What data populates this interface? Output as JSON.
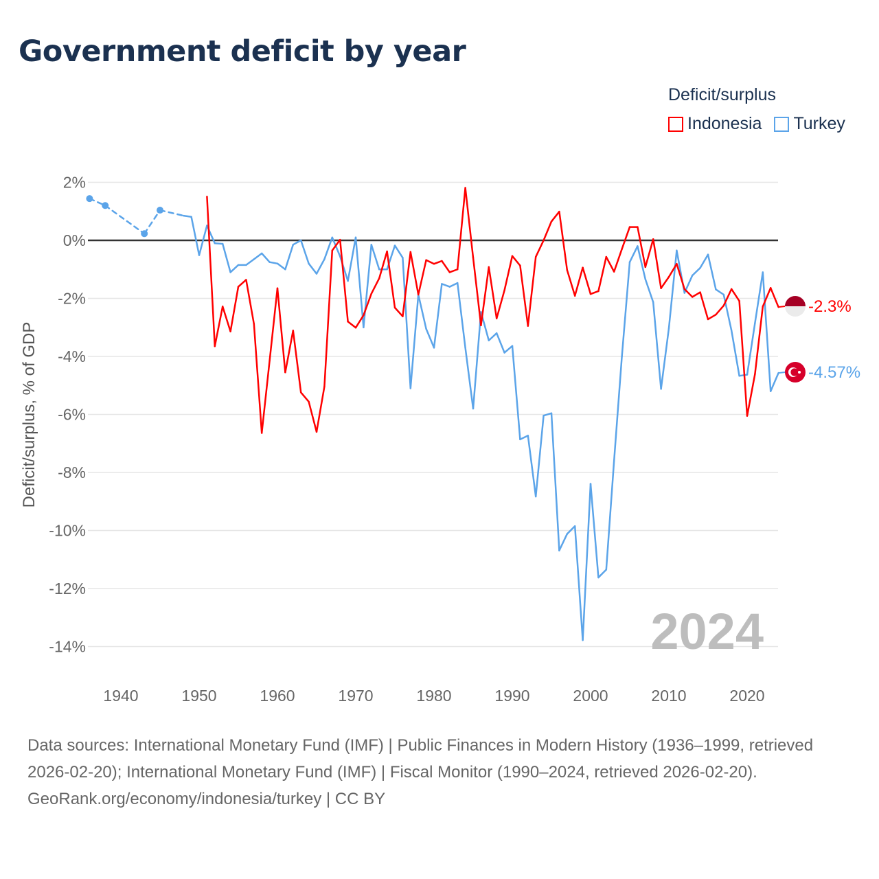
{
  "title": "Government deficit by year",
  "legend": {
    "title": "Deficit/surplus",
    "items": [
      {
        "label": "Indonesia",
        "color": "#ff0000"
      },
      {
        "label": "Turkey",
        "color": "#5ba4e9"
      }
    ]
  },
  "footer": {
    "sources": "Data sources: International Monetary Fund (IMF) | Public Finances in Modern History (1936–1999, retrieved 2026-02-20); International Monetary Fund (IMF) | Fiscal Monitor (1990–2024, retrieved 2026-02-20).",
    "link": "GeoRank.org/economy/indonesia/turkey | CC BY"
  },
  "chart_data": {
    "type": "line",
    "title": "Government deficit by year",
    "xlabel": "",
    "ylabel": "Deficit/surplus, % of GDP",
    "xlim": [
      1936,
      2024
    ],
    "ylim": [
      -14,
      2
    ],
    "yticks": [
      2,
      0,
      -2,
      -4,
      -6,
      -8,
      -10,
      -12,
      -14
    ],
    "ytick_labels": [
      "2%",
      "0%",
      "-2%",
      "-4%",
      "-6%",
      "-8%",
      "-10%",
      "-12%",
      "-14%"
    ],
    "xticks": [
      1940,
      1950,
      1960,
      1970,
      1980,
      1990,
      2000,
      2010,
      2020
    ],
    "xtick_labels": [
      "1940",
      "1950",
      "1960",
      "1970",
      "1980",
      "1990",
      "2000",
      "2010",
      "2020"
    ],
    "year_watermark": "2024",
    "grid": true,
    "legend_position": "top-right",
    "series": [
      {
        "name": "Indonesia",
        "color": "#ff0000",
        "end_label": "-2.3%",
        "x": [
          1951,
          1952,
          1953,
          1954,
          1955,
          1956,
          1957,
          1958,
          1959,
          1960,
          1961,
          1962,
          1963,
          1964,
          1965,
          1966,
          1967,
          1968,
          1969,
          1970,
          1971,
          1972,
          1973,
          1974,
          1975,
          1976,
          1977,
          1978,
          1979,
          1980,
          1981,
          1982,
          1983,
          1984,
          1985,
          1986,
          1987,
          1988,
          1989,
          1990,
          1991,
          1992,
          1993,
          1994,
          1995,
          1996,
          1997,
          1998,
          1999,
          2000,
          2001,
          2002,
          2003,
          2004,
          2005,
          2006,
          2007,
          2008,
          2009,
          2010,
          2011,
          2012,
          2013,
          2014,
          2015,
          2016,
          2017,
          2018,
          2019,
          2020,
          2021,
          2022,
          2023,
          2024
        ],
        "y": [
          1.51,
          -3.65,
          -2.28,
          -3.14,
          -1.6,
          -1.36,
          -2.88,
          -6.64,
          -4.15,
          -1.65,
          -4.55,
          -3.11,
          -5.24,
          -5.56,
          -6.6,
          -5.04,
          -0.35,
          0.02,
          -2.8,
          -3.01,
          -2.58,
          -1.84,
          -1.31,
          -0.38,
          -2.32,
          -2.62,
          -0.4,
          -1.87,
          -0.68,
          -0.81,
          -0.71,
          -1.1,
          -1.0,
          1.81,
          -0.6,
          -2.93,
          -0.92,
          -2.69,
          -1.72,
          -0.54,
          -0.87,
          -2.95,
          -0.57,
          0.0,
          0.65,
          0.99,
          -1.02,
          -1.91,
          -0.94,
          -1.85,
          -1.75,
          -0.57,
          -1.08,
          -0.3,
          0.46,
          0.46,
          -0.92,
          0.04,
          -1.65,
          -1.26,
          -0.81,
          -1.68,
          -1.95,
          -1.79,
          -2.72,
          -2.56,
          -2.25,
          -1.68,
          -2.09,
          -6.05,
          -4.61,
          -2.28,
          -1.64,
          -2.3
        ]
      },
      {
        "name": "Turkey",
        "color": "#5ba4e9",
        "end_label": "-4.57%",
        "x": [
          1936,
          1938,
          1943,
          1945,
          1948,
          1949,
          1950,
          1951,
          1952,
          1953,
          1954,
          1955,
          1956,
          1957,
          1958,
          1959,
          1960,
          1961,
          1962,
          1963,
          1964,
          1965,
          1966,
          1967,
          1968,
          1969,
          1970,
          1971,
          1972,
          1973,
          1974,
          1975,
          1976,
          1977,
          1978,
          1979,
          1980,
          1981,
          1982,
          1983,
          1984,
          1985,
          1986,
          1987,
          1988,
          1989,
          1990,
          1991,
          1992,
          1993,
          1994,
          1995,
          1996,
          1997,
          1998,
          1999,
          2000,
          2001,
          2002,
          2003,
          2004,
          2005,
          2006,
          2007,
          2008,
          2009,
          2010,
          2011,
          2012,
          2013,
          2014,
          2015,
          2016,
          2017,
          2018,
          2019,
          2020,
          2021,
          2022,
          2023,
          2024
        ],
        "y": [
          1.44,
          1.2,
          0.23,
          1.04,
          0.85,
          0.81,
          -0.51,
          0.51,
          -0.1,
          -0.12,
          -1.1,
          -0.85,
          -0.85,
          -0.65,
          -0.45,
          -0.75,
          -0.8,
          -1.0,
          -0.15,
          0.0,
          -0.8,
          -1.15,
          -0.65,
          0.1,
          -0.55,
          -1.4,
          0.1,
          -3.0,
          -0.15,
          -1.0,
          -1.0,
          -0.18,
          -0.6,
          -5.1,
          -1.87,
          -3.05,
          -3.7,
          -1.5,
          -1.6,
          -1.47,
          -3.7,
          -5.8,
          -2.47,
          -3.45,
          -3.2,
          -3.87,
          -3.64,
          -6.86,
          -6.73,
          -8.83,
          -6.04,
          -5.96,
          -10.69,
          -10.12,
          -9.85,
          -13.78,
          -8.39,
          -11.62,
          -11.35,
          -7.6,
          -4.0,
          -0.75,
          -0.2,
          -1.34,
          -2.13,
          -5.12,
          -3.03,
          -0.35,
          -1.81,
          -1.21,
          -0.95,
          -0.49,
          -1.69,
          -1.87,
          -3.11,
          -4.67,
          -4.63,
          -2.85,
          -1.1,
          -5.2,
          -4.57
        ]
      }
    ]
  }
}
